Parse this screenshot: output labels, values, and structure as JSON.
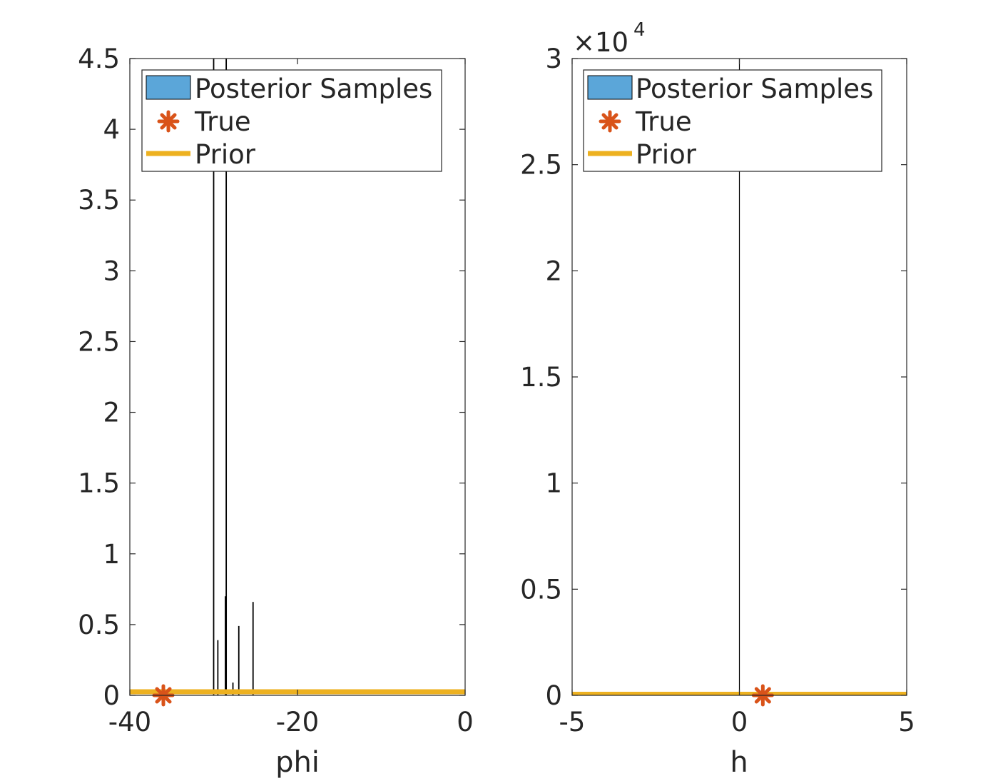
{
  "colors": {
    "hist_face": "#5BA6D9",
    "hist_edge": "#000000",
    "true_marker": "#D95319",
    "prior_line": "#EDB120",
    "axis": "#262626",
    "background": "#ffffff"
  },
  "chart_data": [
    {
      "type": "bar",
      "subplot": "left",
      "xlabel": "phi",
      "ylabel": "",
      "title": "",
      "xlim": [
        -40,
        0
      ],
      "ylim": [
        0,
        4.5
      ],
      "xticks": [
        -40,
        -20,
        0
      ],
      "xtick_labels": [
        "-40",
        "-20",
        "0"
      ],
      "yticks": [
        0,
        0.5,
        1,
        1.5,
        2,
        2.5,
        3,
        3.5,
        4,
        4.5
      ],
      "ytick_labels": [
        "0",
        "0.5",
        "1",
        "1.5",
        "2",
        "2.5",
        "3",
        "3.5",
        "4",
        "4.5"
      ],
      "y_exponent": "",
      "legend_position": "top-right",
      "legend": [
        {
          "label": "Posterior Samples",
          "kind": "patch",
          "icon": "blue-patch-icon"
        },
        {
          "label": "True",
          "kind": "marker",
          "icon": "asterisk-icon"
        },
        {
          "label": "Prior",
          "kind": "line",
          "icon": "yellow-line-icon"
        }
      ],
      "histogram_bars": [
        {
          "x": -30.0,
          "height": 4.6
        },
        {
          "x": -29.5,
          "height": 0.39
        },
        {
          "x": -28.6,
          "height": 0.7
        },
        {
          "x": -28.5,
          "height": 4.6
        },
        {
          "x": -27.7,
          "height": 0.09
        },
        {
          "x": -27.0,
          "height": 0.49
        },
        {
          "x": -25.3,
          "height": 0.66
        }
      ],
      "true_value": {
        "x": -36.0,
        "y": 0
      },
      "prior": {
        "x": [
          -40,
          0
        ],
        "y": [
          0.025,
          0.025
        ]
      }
    },
    {
      "type": "bar",
      "subplot": "right",
      "xlabel": "h",
      "ylabel": "",
      "title": "",
      "xlim": [
        -5,
        5
      ],
      "ylim": [
        0,
        30000
      ],
      "xticks": [
        -5,
        0,
        5
      ],
      "xtick_labels": [
        "-5",
        "0",
        "5"
      ],
      "yticks": [
        0,
        5000,
        10000,
        15000,
        20000,
        25000,
        30000
      ],
      "ytick_labels": [
        "0",
        "0.5",
        "1",
        "1.5",
        "2",
        "2.5",
        "3"
      ],
      "y_exponent": {
        "base": "×10",
        "power": "4"
      },
      "legend_position": "top-right",
      "legend": [
        {
          "label": "Posterior Samples",
          "kind": "patch",
          "icon": "blue-patch-icon"
        },
        {
          "label": "True",
          "kind": "marker",
          "icon": "asterisk-icon"
        },
        {
          "label": "Prior",
          "kind": "line",
          "icon": "yellow-line-icon"
        }
      ],
      "histogram_bars": [
        {
          "x": 0.0,
          "height": 30000
        }
      ],
      "true_value": {
        "x": 0.7,
        "y": 0
      },
      "prior": {
        "x": [
          -5,
          5
        ],
        "y": [
          50,
          50
        ]
      }
    }
  ]
}
